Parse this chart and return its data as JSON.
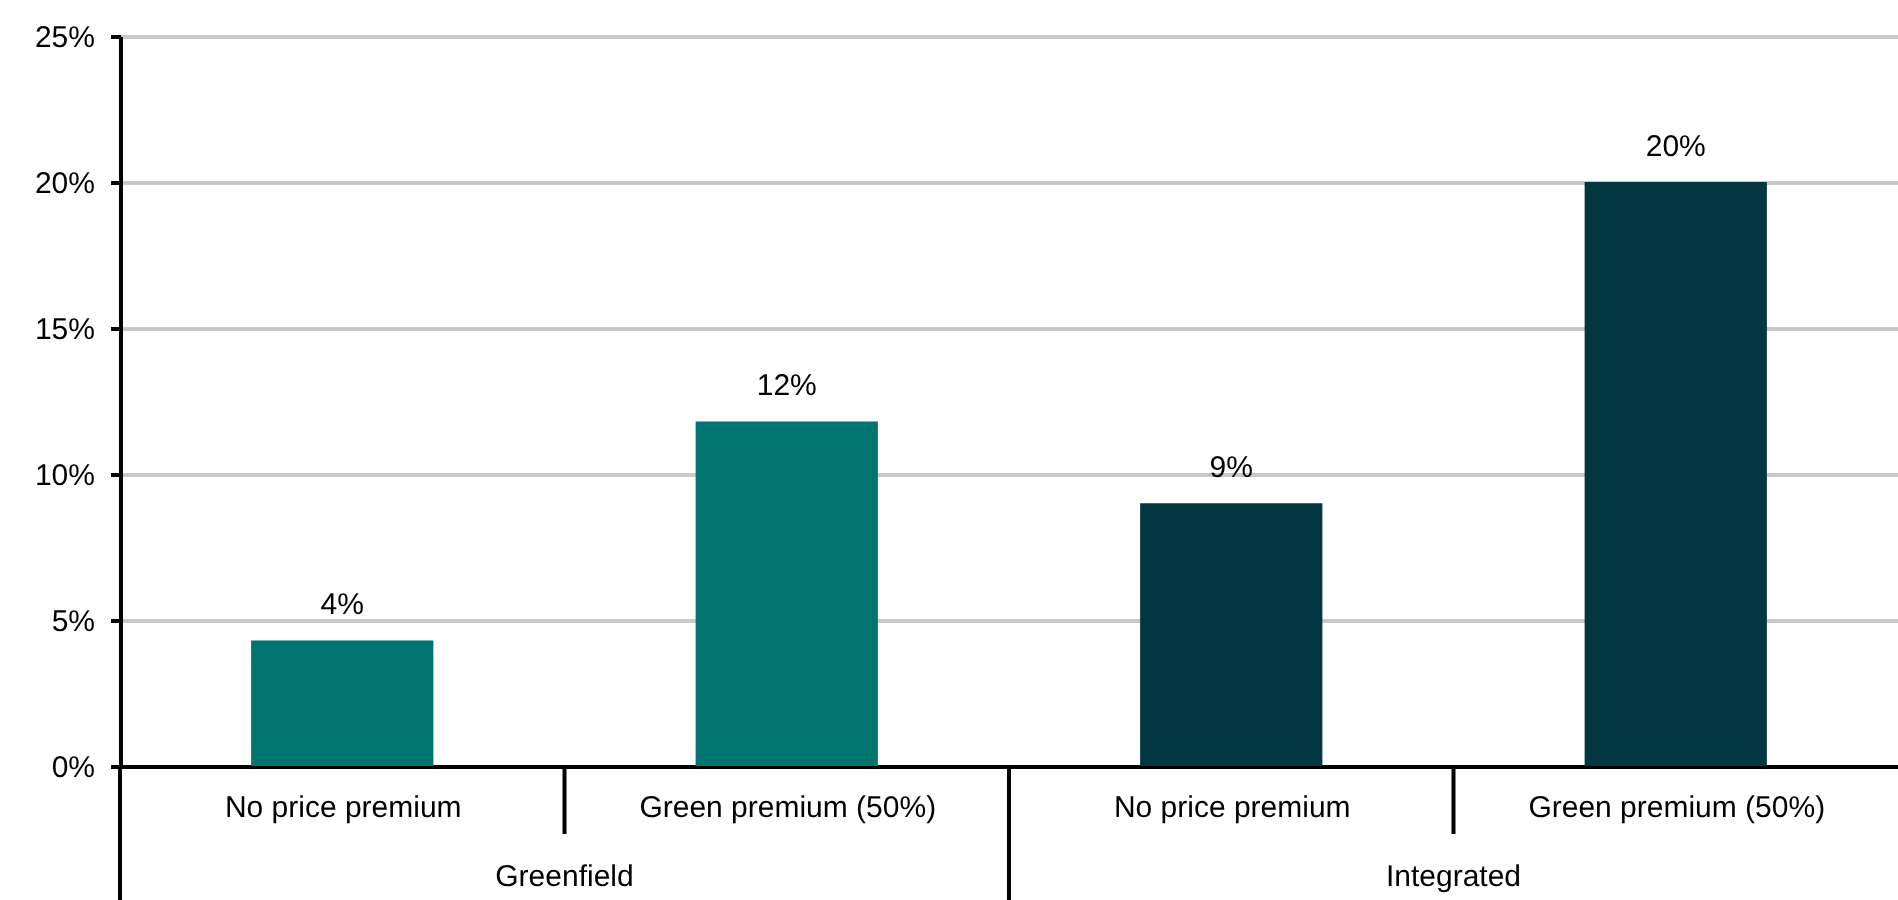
{
  "chart_data": {
    "type": "bar",
    "categories": [
      "No price premium",
      "Green premium (50%)",
      "No price premium",
      "Green premium (50%)"
    ],
    "values": [
      4.3,
      11.8,
      9.0,
      20.0
    ],
    "colors": [
      "#00746f",
      "#00746f",
      "#023641",
      "#023641"
    ],
    "value_labels": [
      "4%",
      "12%",
      "9%",
      "20%"
    ],
    "annotations": [
      "Greenfield",
      "Integrated"
    ],
    "ylim": [
      0,
      25
    ],
    "yticks": [
      {
        "value": 0,
        "label": "0%"
      },
      {
        "value": 5,
        "label": "5%"
      },
      {
        "value": 10,
        "label": "10%"
      },
      {
        "value": 15,
        "label": "15%"
      },
      {
        "value": 20,
        "label": "20%"
      },
      {
        "value": 25,
        "label": "25%"
      }
    ],
    "grid": "y"
  }
}
